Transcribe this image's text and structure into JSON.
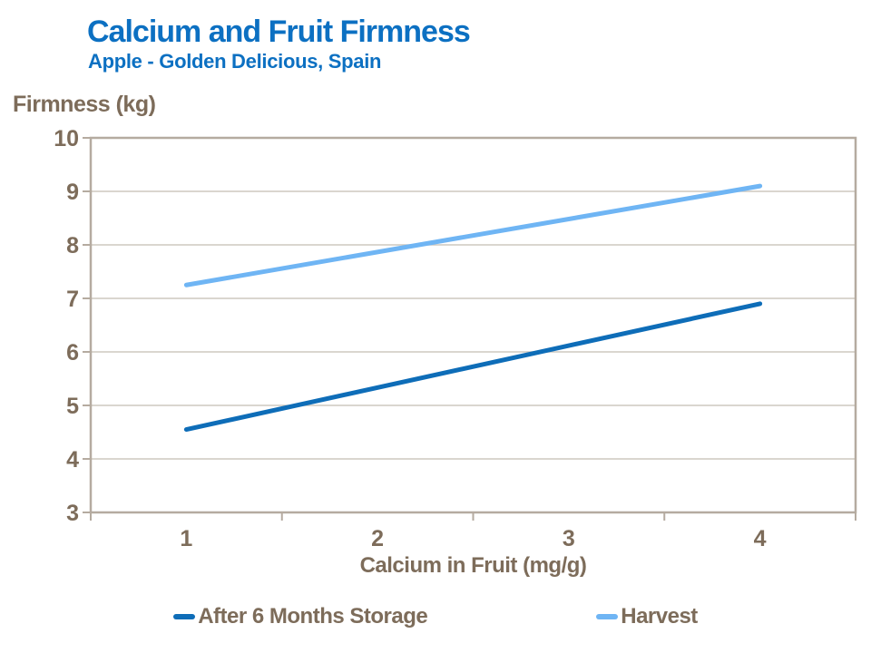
{
  "chart_data": {
    "type": "line",
    "title": "Calcium and Fruit Firmness",
    "subtitle": "Apple - Golden Delicious, Spain",
    "xlabel": "Calcium in Fruit (mg/g)",
    "ylabel": "Firmness (kg)",
    "x_ticks": [
      "1",
      "2",
      "3",
      "4"
    ],
    "y_ticks": [
      3,
      4,
      5,
      6,
      7,
      8,
      9,
      10
    ],
    "ylim": [
      3,
      10
    ],
    "grid": "horizontal gridlines on, boxed plot border",
    "legend_position": "bottom",
    "line_style": "straight lines, rounded caps, no markers",
    "series": [
      {
        "name": "After 6 Months Storage",
        "color": "#0E6DB8",
        "points": [
          [
            1,
            4.55
          ],
          [
            4,
            6.9
          ]
        ]
      },
      {
        "name": "Harvest",
        "color": "#6FB5F4",
        "points": [
          [
            1,
            7.25
          ],
          [
            4,
            9.1
          ]
        ]
      }
    ]
  },
  "style": {
    "title_color": "#0C70C2",
    "text_color": "#7D6C5A",
    "axis_color": "#B5ABA0",
    "gridline_color": "#CEC8BF",
    "background": "#FFFFFF"
  }
}
